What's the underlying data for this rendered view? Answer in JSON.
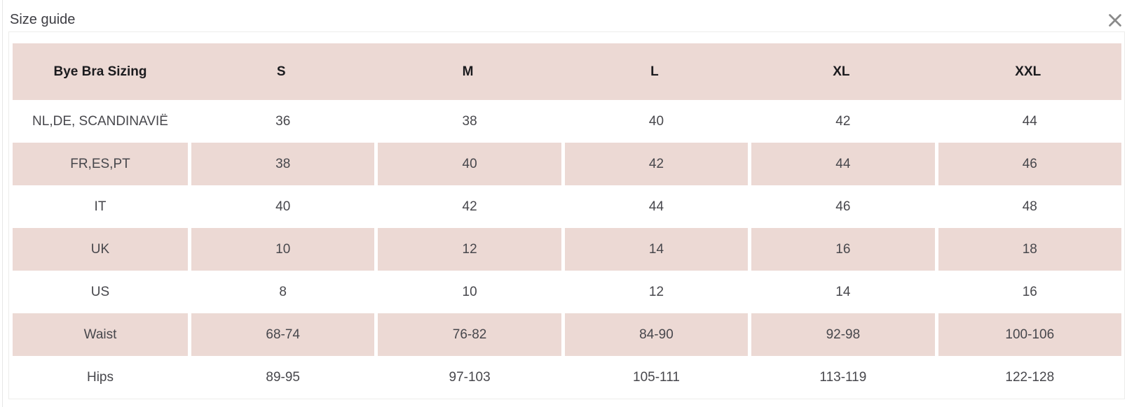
{
  "modal": {
    "title": "Size guide",
    "close_icon": "x-close"
  },
  "table": {
    "header": [
      "Bye Bra Sizing",
      "S",
      "M",
      "L",
      "XL",
      "XXL"
    ],
    "rows": [
      {
        "label": "NL,DE, SCANDINAVIË",
        "values": [
          "36",
          "38",
          "40",
          "42",
          "44"
        ],
        "striped": false
      },
      {
        "label": "FR,ES,PT",
        "values": [
          "38",
          "40",
          "42",
          "44",
          "46"
        ],
        "striped": true
      },
      {
        "label": "IT",
        "values": [
          "40",
          "42",
          "44",
          "46",
          "48"
        ],
        "striped": false
      },
      {
        "label": "UK",
        "values": [
          "10",
          "12",
          "14",
          "16",
          "18"
        ],
        "striped": true
      },
      {
        "label": "US",
        "values": [
          "8",
          "10",
          "12",
          "14",
          "16"
        ],
        "striped": false
      },
      {
        "label": "Waist",
        "values": [
          "68-74",
          "76-82",
          "84-90",
          "92-98",
          "100-106"
        ],
        "striped": true
      },
      {
        "label": "Hips",
        "values": [
          "89-95",
          "97-103",
          "105-111",
          "113-119",
          "122-128"
        ],
        "striped": false
      }
    ]
  },
  "colors": {
    "stripe": "#ecd9d4",
    "header_text": "#1b1b1e",
    "cell_text": "#47474c",
    "title_text": "#3d3d43",
    "close_icon": "#8a8a8a",
    "panel_border": "#ededeb"
  }
}
